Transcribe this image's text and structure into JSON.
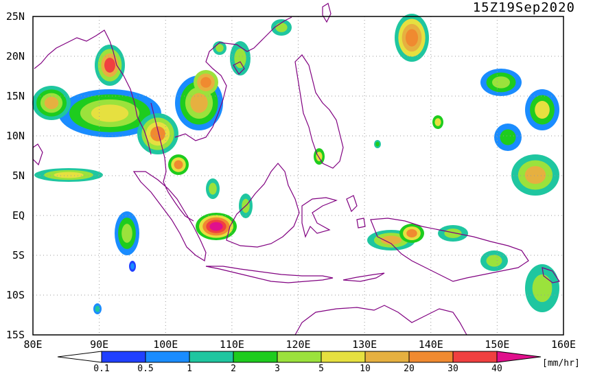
{
  "timestamp": "15Z19Sep2020",
  "axes": {
    "lat_labels": [
      "25N",
      "20N",
      "15N",
      "10N",
      "5N",
      "EQ",
      "5S",
      "10S",
      "15S"
    ],
    "lon_labels": [
      "80E",
      "90E",
      "100E",
      "110E",
      "120E",
      "130E",
      "140E",
      "150E",
      "160E"
    ],
    "lon_range": [
      80,
      160
    ],
    "lat_range": [
      -15,
      25
    ],
    "grid": "dotted"
  },
  "colorbar": {
    "units": "[mm/hr]",
    "ticks": [
      "0.1",
      "0.5",
      "1",
      "2",
      "3",
      "5",
      "10",
      "20",
      "30",
      "40"
    ],
    "colors": [
      "#2040ff",
      "#1a8cff",
      "#1fc6a0",
      "#1ecc1e",
      "#9be23c",
      "#e6e040",
      "#e6b040",
      "#f08a30",
      "#f04040",
      "#e0108c"
    ]
  },
  "colors": {
    "coast": "#800080",
    "frame": "#000000"
  }
}
